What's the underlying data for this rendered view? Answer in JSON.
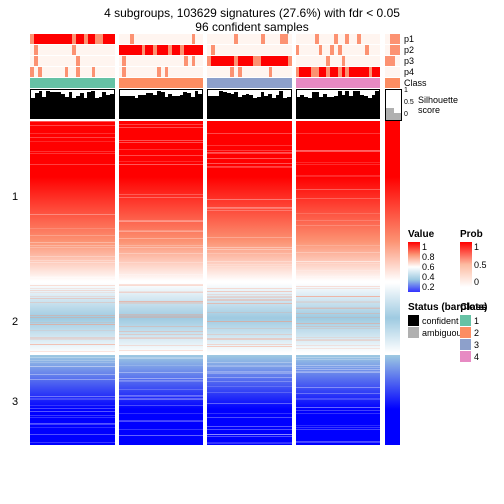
{
  "title": {
    "line1": "4 subgroups, 103629 signatures (27.6%) with fdr < 0.05",
    "line2": "96 confident samples"
  },
  "annotation_tracks": {
    "labels": [
      "p1",
      "p2",
      "p3",
      "p4",
      "Class"
    ],
    "p_colors_low": "#fff5f0",
    "p_colors_mid": "#fc9272",
    "p_colors_high": "#ff0000",
    "class_colors": [
      "#66c2a5",
      "#fc8d62",
      "#8da0cb",
      "#e78ac3"
    ]
  },
  "silhouette": {
    "label": "Silhouette\nscore",
    "axis": [
      "1",
      "0.5",
      "0"
    ],
    "confident_color": "#000000",
    "ambiguous_color": "#b0b0b0"
  },
  "heatmap": {
    "row_groups": [
      "1",
      "2",
      "3"
    ],
    "row_group_heights": [
      160,
      70,
      90
    ],
    "gradient_stops": {
      "red_high": "#ff0000",
      "red_mid": "#fc9272",
      "white": "#ffffff",
      "blue_mid": "#9ecae1",
      "blue_high": "#0000ff"
    }
  },
  "legends": {
    "value": {
      "title": "Value",
      "ticks": [
        "1",
        "0.8",
        "0.6",
        "0.4",
        "0.2"
      ],
      "gradient": [
        "#ff0000",
        "#fc9272",
        "#ffffff",
        "#9ecae1",
        "#3232ff"
      ]
    },
    "status": {
      "title": "Status (barplots)",
      "items": [
        {
          "label": "confident",
          "color": "#000000"
        },
        {
          "label": "ambiguous",
          "color": "#b0b0b0"
        }
      ]
    },
    "prob": {
      "title": "Prob",
      "ticks": [
        "1",
        "0.5",
        "0"
      ],
      "gradient": [
        "#ff0000",
        "#fcbba1",
        "#ffffff"
      ]
    },
    "class": {
      "title": "Class",
      "items": [
        {
          "label": "1",
          "color": "#66c2a5"
        },
        {
          "label": "2",
          "color": "#fc8d62"
        },
        {
          "label": "3",
          "color": "#8da0cb"
        },
        {
          "label": "4",
          "color": "#e78ac3"
        }
      ]
    }
  }
}
